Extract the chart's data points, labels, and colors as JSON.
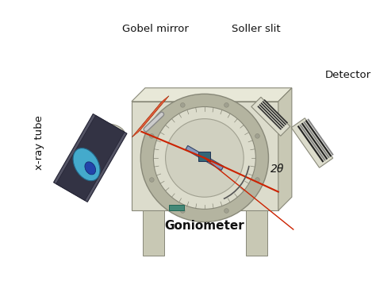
{
  "title": "",
  "background_color": "#ffffff",
  "labels": {
    "gobel_mirror": "Gobel mirror",
    "soller_slit": "Soller slit",
    "detector": "Detector",
    "xray_tube": "x-ray tube",
    "goniometer": "Goniometer",
    "two_theta": "2θ"
  },
  "colors": {
    "bg": "#ffffff",
    "body_light": "#dcdccc",
    "body_mid": "#c8c8b4",
    "body_dark": "#a0a090",
    "body_edge": "#888878",
    "circle_face": "#e8e8d8",
    "circle_ring": "#b4b4a0",
    "inner_circle": "#d0d0c0",
    "beam_red": "#cc2200",
    "tube_cyan": "#44aacc",
    "tube_dark": "#333344",
    "tube_blue": "#2244aa",
    "gobel_red": "#cc3300",
    "gobel_orange": "#dd6644",
    "detector_stripe_dark": "#222222",
    "detector_stripe_light": "#888888",
    "teal_button": "#448877",
    "arc_color": "#555555",
    "stand_color": "#d0d0c0",
    "text_color": "#111111"
  },
  "figsize": [
    4.74,
    3.59
  ],
  "dpi": 100
}
